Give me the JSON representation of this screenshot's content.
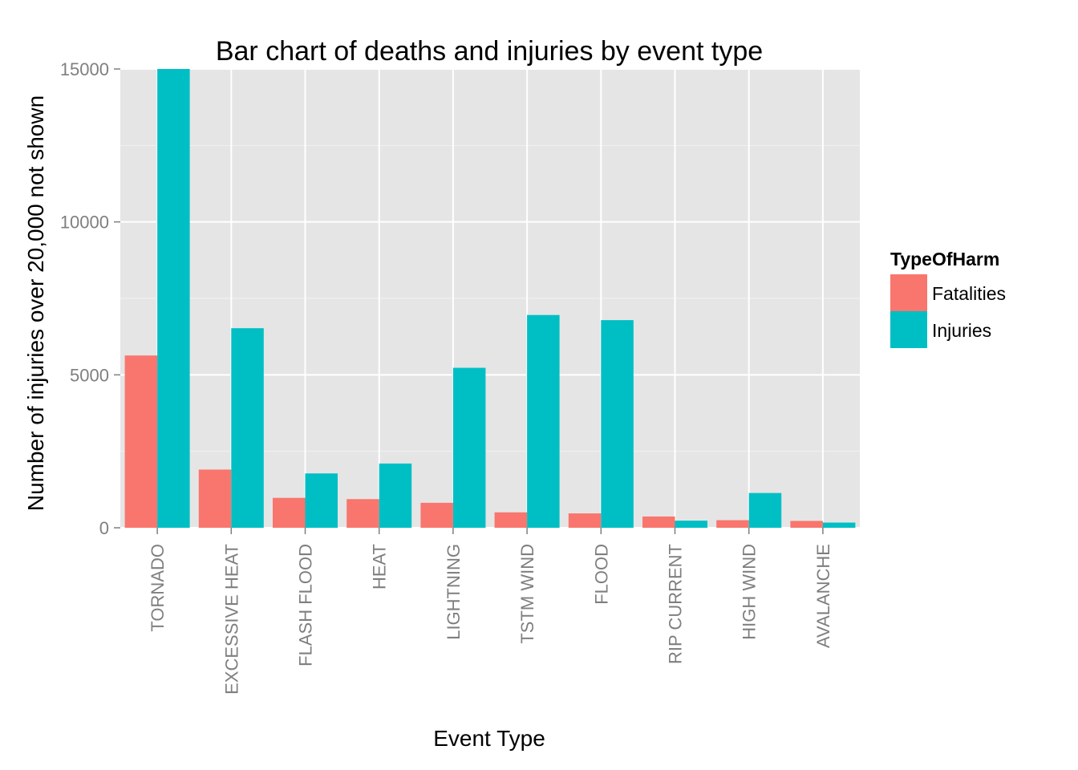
{
  "chart_data": {
    "type": "bar",
    "title": "Bar chart of deaths and injuries by event type",
    "xlabel": "Event Type",
    "ylabel": "Number of injuries over 20,000 not shown",
    "ylim": [
      0,
      15000
    ],
    "yticks": [
      0,
      5000,
      10000,
      15000
    ],
    "ytick_labels": [
      "0",
      "5000",
      "10000",
      "15000"
    ],
    "grid": true,
    "categories": [
      "TORNADO",
      "EXCESSIVE HEAT",
      "FLASH FLOOD",
      "HEAT",
      "LIGHTNING",
      "TSTM WIND",
      "FLOOD",
      "RIP CURRENT",
      "HIGH WIND",
      "AVALANCHE"
    ],
    "series": [
      {
        "name": "Fatalities",
        "color": "#F8766D",
        "values": [
          5633,
          1903,
          978,
          937,
          816,
          504,
          470,
          368,
          248,
          224
        ]
      },
      {
        "name": "Injuries",
        "color": "#00BFC4",
        "values": [
          15000,
          6525,
          1777,
          2100,
          5230,
          6957,
          6789,
          232,
          1137,
          170
        ]
      }
    ],
    "legend": {
      "title": "TypeOfHarm",
      "placement": "right"
    },
    "colors": {
      "panel": "#E5E5E5",
      "grid_major": "#FFFFFF",
      "grid_minor": "#F2F2F2",
      "tick_text": "#7F7F7F"
    }
  }
}
